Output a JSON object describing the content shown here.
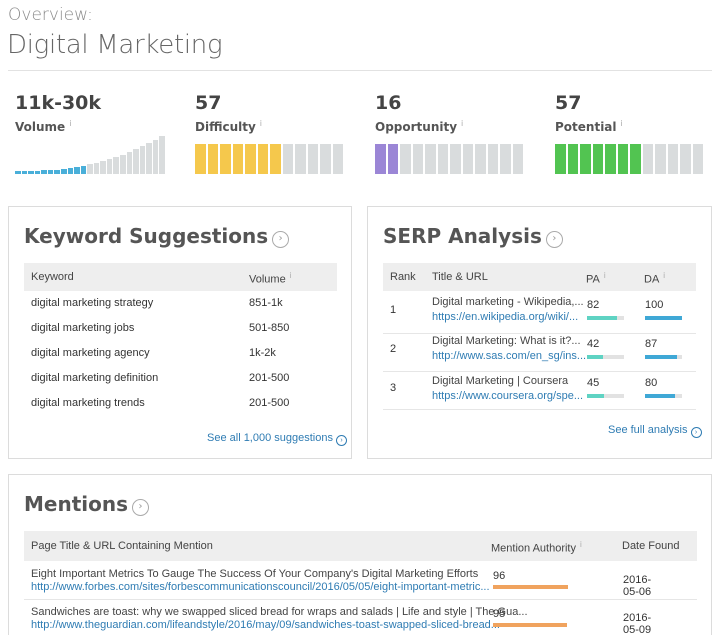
{
  "header": {
    "overview_label": "Overview:",
    "title": "Digital Marketing"
  },
  "metrics": [
    {
      "value": "11k-30k",
      "label": "Volume",
      "info": "i"
    },
    {
      "value": "57",
      "label": "Difficulty",
      "info": "i",
      "fill": 0.57,
      "color": "#f5c84c"
    },
    {
      "value": "16",
      "label": "Opportunity",
      "info": "i",
      "fill": 0.16,
      "color": "#9b86d6"
    },
    {
      "value": "57",
      "label": "Potential",
      "info": "i",
      "fill": 0.57,
      "color": "#52c451"
    }
  ],
  "volume_bars": {
    "filled_color": "#49afd9",
    "empty_color": "#d9dcdd",
    "filled_count": 11,
    "total": 23
  },
  "keyword_suggestions": {
    "title": "Keyword Suggestions",
    "arrow": "›",
    "columns": [
      "Keyword",
      "Volume"
    ],
    "info": "i",
    "rows": [
      {
        "keyword": "digital marketing strategy",
        "volume": "851-1k"
      },
      {
        "keyword": "digital marketing jobs",
        "volume": "501-850"
      },
      {
        "keyword": "digital marketing agency",
        "volume": "1k-2k"
      },
      {
        "keyword": "digital marketing definition",
        "volume": "201-500"
      },
      {
        "keyword": "digital marketing trends",
        "volume": "201-500"
      }
    ],
    "see_all": "See all 1,000 suggestions"
  },
  "serp_analysis": {
    "title": "SERP Analysis",
    "arrow": "›",
    "columns": [
      "Rank",
      "Title & URL",
      "PA",
      "DA"
    ],
    "info": "i",
    "pa_color": "#5fd3c3",
    "da_color": "#3fa8d6",
    "rows": [
      {
        "rank": "1",
        "title": "Digital marketing - Wikipedia,...",
        "url": "https://en.wikipedia.org/wiki/...",
        "pa": "82",
        "da": "100"
      },
      {
        "rank": "2",
        "title": "Digital Marketing: What is it?...",
        "url": "http://www.sas.com/en_sg/ins...",
        "pa": "42",
        "da": "87"
      },
      {
        "rank": "3",
        "title": "Digital Marketing | Coursera",
        "url": "https://www.coursera.org/spe...",
        "pa": "45",
        "da": "80"
      }
    ],
    "see_full": "See full analysis"
  },
  "mentions": {
    "title": "Mentions",
    "arrow": "›",
    "columns": [
      "Page Title & URL Containing Mention",
      "Mention Authority",
      "Date Found"
    ],
    "info": "i",
    "bar_color": "#f0a35e",
    "rows": [
      {
        "title": "Eight Important Metrics To Gauge The Success Of Your Company's Digital Marketing Efforts",
        "url": "http://www.forbes.com/sites/forbescommunicationscouncil/2016/05/05/eight-important-metric...",
        "authority": "96",
        "date": "2016-05-06"
      },
      {
        "title": "Sandwiches are toast: why we swapped sliced bread for wraps and salads | Life and style | The Gua...",
        "url": "http://www.theguardian.com/lifeandstyle/2016/may/09/sandwiches-toast-swapped-sliced-bread...",
        "authority": "95",
        "date": "2016-05-09"
      }
    ]
  }
}
